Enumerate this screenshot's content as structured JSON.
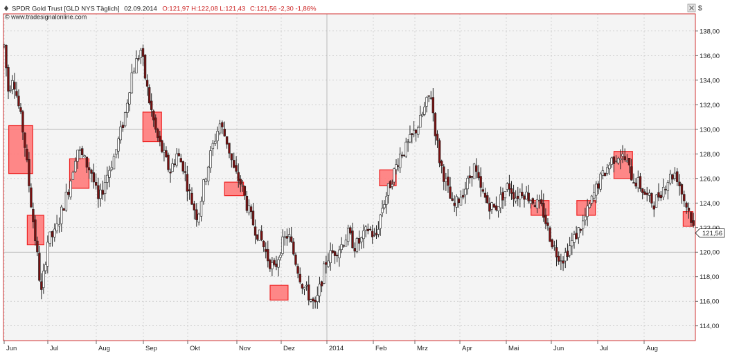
{
  "header": {
    "instrument": "SPDR Gold Trust [GLD NYS  Täglich]",
    "date": "02.09.2014",
    "ohlc": "O:121,97 H:122,08 L:121,43",
    "close": "C:121,56 -2,30 -1,86%",
    "source": "© www.tradesignalonline.com"
  },
  "currency_symbol": "$",
  "last_price_label": "121,56",
  "colors": {
    "plot_bg": "#f4f4f4",
    "frame": "#d23232",
    "candle": "#222222",
    "bear_body": "#7a1010",
    "box_fill": "#ff7b7b",
    "box_stroke": "#ee2222",
    "header_red": "#cc2222",
    "grid": "#bbbbbb"
  },
  "chart_data": {
    "type": "candlestick",
    "x_axis": {
      "tick_labels": [
        "Jun",
        "Jul",
        "Aug",
        "Sep",
        "Okt",
        "Nov",
        "Dez",
        "2014",
        "Feb",
        "Mrz",
        "Apr",
        "Mai",
        "Jun",
        "Jul",
        "Aug"
      ],
      "range": [
        "2013-06",
        "2014-09-02"
      ]
    },
    "y_axis": {
      "tick_labels": [
        "138,00",
        "136,00",
        "134,00",
        "132,00",
        "130,00",
        "128,00",
        "126,00",
        "124,00",
        "122,00",
        "120,00",
        "118,00",
        "116,00",
        "114,00"
      ],
      "ylim": [
        112.8,
        139.4
      ],
      "position": "right"
    },
    "grid": true,
    "highlight_boxes": [
      {
        "month_pos": 0.38,
        "width_months": 0.55,
        "high": 130.3,
        "low": 126.4
      },
      {
        "month_pos": 0.72,
        "width_months": 0.38,
        "high": 123.0,
        "low": 120.6
      },
      {
        "month_pos": 1.65,
        "width_months": 0.4,
        "high": 127.6,
        "low": 125.2
      },
      {
        "month_pos": 3.2,
        "width_months": 0.42,
        "high": 131.4,
        "low": 129.0
      },
      {
        "month_pos": 4.95,
        "width_months": 0.4,
        "high": 125.7,
        "low": 124.6
      },
      {
        "month_pos": 5.95,
        "width_months": 0.4,
        "high": 117.3,
        "low": 116.1
      },
      {
        "month_pos": 8.35,
        "width_months": 0.4,
        "high": 126.7,
        "low": 125.4
      },
      {
        "month_pos": 11.75,
        "width_months": 0.4,
        "high": 124.2,
        "low": 123.0
      },
      {
        "month_pos": 12.75,
        "width_months": 0.4,
        "high": 124.2,
        "low": 123.0
      },
      {
        "month_pos": 13.55,
        "width_months": 0.4,
        "high": 128.2,
        "low": 126.0
      },
      {
        "month_pos": 14.9,
        "width_months": 0.2,
        "high": 123.3,
        "low": 122.1
      }
    ],
    "path_points": [
      [
        0.0,
        136.8
      ],
      [
        0.1,
        133.0
      ],
      [
        0.2,
        134.5
      ],
      [
        0.35,
        131.5
      ],
      [
        0.45,
        129.5
      ],
      [
        0.6,
        124.5
      ],
      [
        0.75,
        120.0
      ],
      [
        0.85,
        116.5
      ],
      [
        0.95,
        119.5
      ],
      [
        1.0,
        121.0
      ],
      [
        1.15,
        121.5
      ],
      [
        1.3,
        123.5
      ],
      [
        1.45,
        125.5
      ],
      [
        1.6,
        128.5
      ],
      [
        1.75,
        127.5
      ],
      [
        1.9,
        126.5
      ],
      [
        2.05,
        124.0
      ],
      [
        2.2,
        126.0
      ],
      [
        2.4,
        128.0
      ],
      [
        2.6,
        131.0
      ],
      [
        2.75,
        134.5
      ],
      [
        2.85,
        135.5
      ],
      [
        2.95,
        136.5
      ],
      [
        3.05,
        134.0
      ],
      [
        3.15,
        132.0
      ],
      [
        3.3,
        129.5
      ],
      [
        3.45,
        128.0
      ],
      [
        3.6,
        126.5
      ],
      [
        3.75,
        128.0
      ],
      [
        3.9,
        127.0
      ],
      [
        4.05,
        124.5
      ],
      [
        4.2,
        122.8
      ],
      [
        4.35,
        126.0
      ],
      [
        4.5,
        128.5
      ],
      [
        4.65,
        130.5
      ],
      [
        4.8,
        129.0
      ],
      [
        4.95,
        126.5
      ],
      [
        5.1,
        125.5
      ],
      [
        5.25,
        123.5
      ],
      [
        5.4,
        122.0
      ],
      [
        5.55,
        121.0
      ],
      [
        5.7,
        119.5
      ],
      [
        5.85,
        118.5
      ],
      [
        6.0,
        120.5
      ],
      [
        6.15,
        121.5
      ],
      [
        6.3,
        119.5
      ],
      [
        6.45,
        117.5
      ],
      [
        6.6,
        116.5
      ],
      [
        6.75,
        115.5
      ],
      [
        6.9,
        118.0
      ],
      [
        7.0,
        119.5
      ],
      [
        7.15,
        120.0
      ],
      [
        7.3,
        120.5
      ],
      [
        7.45,
        121.5
      ],
      [
        7.6,
        120.5
      ],
      [
        7.75,
        121.0
      ],
      [
        7.9,
        122.0
      ],
      [
        8.05,
        121.0
      ],
      [
        8.2,
        123.5
      ],
      [
        8.35,
        125.0
      ],
      [
        8.5,
        126.5
      ],
      [
        8.65,
        128.0
      ],
      [
        8.8,
        128.5
      ],
      [
        8.95,
        129.5
      ],
      [
        9.1,
        130.5
      ],
      [
        9.25,
        132.0
      ],
      [
        9.35,
        133.0
      ],
      [
        9.45,
        130.0
      ],
      [
        9.55,
        127.5
      ],
      [
        9.7,
        125.5
      ],
      [
        9.85,
        123.5
      ],
      [
        10.0,
        124.5
      ],
      [
        10.15,
        125.5
      ],
      [
        10.3,
        127.0
      ],
      [
        10.45,
        125.0
      ],
      [
        10.6,
        124.0
      ],
      [
        10.75,
        123.5
      ],
      [
        10.9,
        124.5
      ],
      [
        11.05,
        125.5
      ],
      [
        11.2,
        124.5
      ],
      [
        11.35,
        125.0
      ],
      [
        11.5,
        124.5
      ],
      [
        11.65,
        124.0
      ],
      [
        11.8,
        123.5
      ],
      [
        11.95,
        121.5
      ],
      [
        12.1,
        120.0
      ],
      [
        12.25,
        119.5
      ],
      [
        12.4,
        120.5
      ],
      [
        12.55,
        121.5
      ],
      [
        12.7,
        122.5
      ],
      [
        12.85,
        124.0
      ],
      [
        13.0,
        125.5
      ],
      [
        13.15,
        126.5
      ],
      [
        13.3,
        127.5
      ],
      [
        13.45,
        128.0
      ],
      [
        13.6,
        127.5
      ],
      [
        13.75,
        126.0
      ],
      [
        13.9,
        125.5
      ],
      [
        14.05,
        124.5
      ],
      [
        14.2,
        124.0
      ],
      [
        14.35,
        125.0
      ],
      [
        14.5,
        126.0
      ],
      [
        14.65,
        126.5
      ],
      [
        14.8,
        124.5
      ],
      [
        14.95,
        123.0
      ],
      [
        15.03,
        121.6
      ]
    ]
  }
}
